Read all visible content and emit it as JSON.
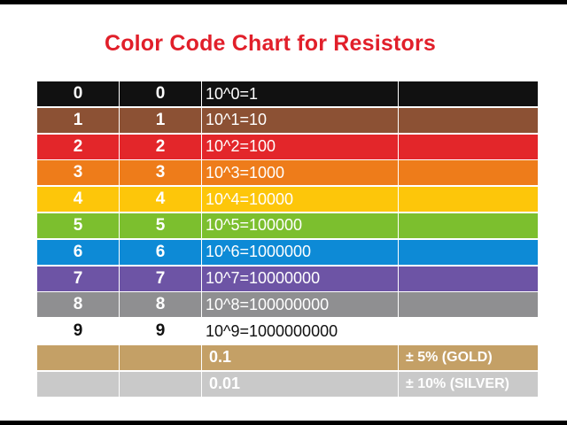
{
  "title": "Color Code Chart for Resistors",
  "rows": [
    {
      "digit": "0",
      "significant": "0",
      "multiplier": "10^0=1",
      "tolerance": "",
      "color": "#111111"
    },
    {
      "digit": "1",
      "significant": "1",
      "multiplier": "10^1=10",
      "tolerance": "",
      "color": "#8c5134"
    },
    {
      "digit": "2",
      "significant": "2",
      "multiplier": "10^2=100",
      "tolerance": "",
      "color": "#e3262a"
    },
    {
      "digit": "3",
      "significant": "3",
      "multiplier": "10^3=1000",
      "tolerance": "",
      "color": "#ee7c1a"
    },
    {
      "digit": "4",
      "significant": "4",
      "multiplier": "10^4=10000",
      "tolerance": "",
      "color": "#fdc60a"
    },
    {
      "digit": "5",
      "significant": "5",
      "multiplier": "10^5=100000",
      "tolerance": "",
      "color": "#7cbf2e"
    },
    {
      "digit": "6",
      "significant": "6",
      "multiplier": "10^6=1000000",
      "tolerance": "",
      "color": "#0d8ad6"
    },
    {
      "digit": "7",
      "significant": "7",
      "multiplier": "10^7=10000000",
      "tolerance": "",
      "color": "#6d54a5"
    },
    {
      "digit": "8",
      "significant": "8",
      "multiplier": "10^8=100000000",
      "tolerance": "",
      "color": "#8f8f91"
    },
    {
      "digit": "9",
      "significant": "9",
      "multiplier": "10^9=1000000000",
      "tolerance": "",
      "color": "#ffffff"
    },
    {
      "digit": "",
      "significant": "",
      "multiplier": "0.1",
      "tolerance": "± 5%  (GOLD)",
      "color": "#c4a066"
    },
    {
      "digit": "",
      "significant": "",
      "multiplier": "0.01",
      "tolerance": "± 10% (SILVER)",
      "color": "#c9c9c9"
    }
  ]
}
